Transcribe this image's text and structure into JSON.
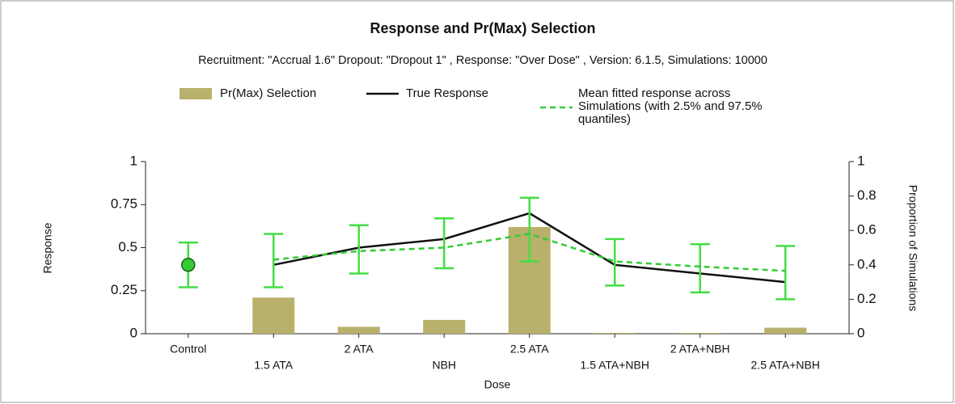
{
  "chart_data": {
    "type": "combo",
    "title": "Response and Pr(Max) Selection",
    "subtitle": "Recruitment: \"Accrual 1.6\" Dropout: \"Dropout 1\" , Response: \"Over Dose\" , Version: 6.1.5, Simulations: 10000",
    "x_label": "Dose",
    "y_label": "Response",
    "y2_label": "Proportion of Simulations",
    "categories": [
      "Control",
      "1.5 ATA",
      "2 ATA",
      "NBH",
      "2.5 ATA",
      "1.5 ATA+NBH",
      "2 ATA+NBH",
      "2.5 ATA+NBH"
    ],
    "ylim": [
      0,
      1
    ],
    "yticks": [
      0,
      0.25,
      0.5,
      0.75,
      1
    ],
    "y2lim": [
      0,
      1
    ],
    "y2ticks": [
      0,
      0.2,
      0.4,
      0.6,
      0.8,
      1
    ],
    "series": [
      {
        "name": "Pr(Max) Selection",
        "kind": "bar",
        "axis": "y2",
        "color": "#b9b06c",
        "values": [
          0,
          0.21,
          0.04,
          0.08,
          0.62,
          0.005,
          0.005,
          0.035
        ]
      },
      {
        "name": "True Response",
        "kind": "line",
        "color": "#111111",
        "values": [
          null,
          0.4,
          0.5,
          0.55,
          0.7,
          0.4,
          0.35,
          0.3
        ]
      },
      {
        "name": "Mean fitted response across Simulations (with 2.5% and 97.5% quantiles)",
        "kind": "dashed",
        "color": "#33cc33",
        "values": [
          null,
          0.43,
          0.48,
          0.5,
          0.58,
          0.42,
          0.39,
          0.365
        ],
        "lower": [
          null,
          0.27,
          0.35,
          0.38,
          0.42,
          0.28,
          0.24,
          0.2
        ],
        "upper": [
          null,
          0.58,
          0.63,
          0.67,
          0.79,
          0.55,
          0.52,
          0.51
        ]
      }
    ],
    "control_value": 0.4,
    "control_lower": 0.27,
    "control_upper": 0.53
  }
}
